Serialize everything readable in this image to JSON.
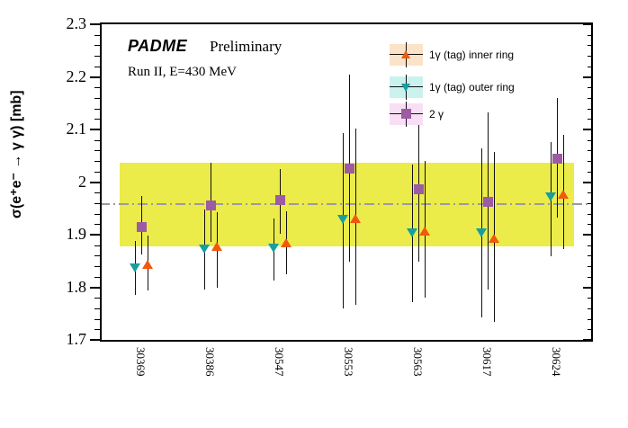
{
  "title": {
    "experiment": "PADME",
    "status": "Preliminary",
    "subtitle": "Run II, E=430 MeV"
  },
  "y_axis": {
    "label": "σ(e⁺e⁻ → γ γ) [mb]",
    "min": 1.7,
    "max": 2.3,
    "major_tick_step": 0.1,
    "minor_ticks_per_major": 5,
    "tick_labels": [
      "1.7",
      "1.8",
      "1.9",
      "2",
      "2.1",
      "2.2",
      "2.3"
    ]
  },
  "x_axis": {
    "categories": [
      "30369",
      "30386",
      "30547",
      "30553",
      "30563",
      "30617",
      "30624"
    ]
  },
  "chart_data": {
    "type": "scatter",
    "title": "PADME Preliminary",
    "subtitle": "Run II, E=430 MeV",
    "xlabel": "",
    "ylabel": "σ(e⁺e⁻ → γ γ) [mb]",
    "ylim": [
      1.7,
      2.3
    ],
    "grid": false,
    "legend_position": "top-right",
    "categories": [
      "30369",
      "30386",
      "30547",
      "30553",
      "30563",
      "30617",
      "30624"
    ],
    "series": [
      {
        "name": "1γ (tag) inner ring",
        "marker": "triangle-up",
        "color": "#F2580D",
        "band_color": "#FBE3C8",
        "values": [
          1.844,
          1.877,
          1.885,
          1.93,
          1.907,
          1.894,
          1.977
        ],
        "err_upper": [
          1.898,
          1.943,
          1.944,
          2.102,
          2.041,
          2.058,
          2.089
        ],
        "err_lower": [
          1.794,
          1.799,
          1.825,
          1.766,
          1.781,
          1.734,
          1.873
        ]
      },
      {
        "name": "1γ (tag) outer ring",
        "marker": "triangle-down",
        "color": "#179F9F",
        "band_color": "#C9F2EF",
        "values": [
          1.837,
          1.873,
          1.875,
          1.929,
          1.903,
          1.903,
          1.972
        ],
        "err_upper": [
          1.888,
          1.948,
          1.931,
          2.093,
          2.033,
          2.064,
          2.076
        ],
        "err_lower": [
          1.785,
          1.796,
          1.813,
          1.759,
          1.771,
          1.742,
          1.859
        ]
      },
      {
        "name": "2 γ",
        "marker": "square",
        "color": "#9C5BA3",
        "band_color": "#F9DFF5",
        "values": [
          1.915,
          1.956,
          1.967,
          2.027,
          1.987,
          1.964,
          2.046
        ],
        "err_upper": [
          1.973,
          2.037,
          2.024,
          2.205,
          2.11,
          2.133,
          2.16
        ],
        "err_lower": [
          1.862,
          1.887,
          1.902,
          1.848,
          1.848,
          1.796,
          1.933
        ]
      }
    ],
    "band": {
      "from": 1.878,
      "to": 2.037,
      "color": "#EBEB4A"
    },
    "mean_line": {
      "value": 1.958,
      "style": "dash-dot",
      "color": "#9A9AA0"
    }
  }
}
